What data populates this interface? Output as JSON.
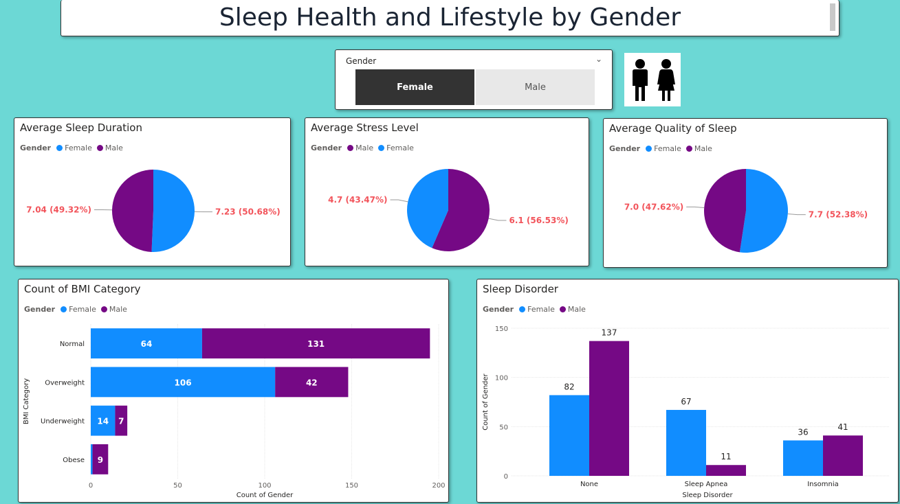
{
  "title": "Sleep Health and Lifestyle by Gender",
  "colors": {
    "female": "#118dff",
    "male": "#750985",
    "label": "#f2545b"
  },
  "slicer": {
    "header": "Gender",
    "options": [
      "Female",
      "Male"
    ],
    "selected": "Female"
  },
  "icon": "man-woman-icon",
  "legend_title": "Gender",
  "chart_data": [
    {
      "type": "pie",
      "title": "Average Sleep Duration",
      "legend": [
        "Female",
        "Male"
      ],
      "slices": [
        {
          "name": "Female",
          "value": 7.23,
          "label": "7.23 (50.68%)"
        },
        {
          "name": "Male",
          "value": 7.04,
          "label": "7.04 (49.32%)"
        }
      ]
    },
    {
      "type": "pie",
      "title": "Average Stress Level",
      "legend": [
        "Male",
        "Female"
      ],
      "slices": [
        {
          "name": "Male",
          "value": 6.1,
          "label": "6.1 (56.53%)"
        },
        {
          "name": "Female",
          "value": 4.7,
          "label": "4.7 (43.47%)"
        }
      ]
    },
    {
      "type": "pie",
      "title": "Average Quality of Sleep",
      "legend": [
        "Female",
        "Male"
      ],
      "slices": [
        {
          "name": "Female",
          "value": 7.7,
          "label": "7.7 (52.38%)"
        },
        {
          "name": "Male",
          "value": 7.0,
          "label": "7.0 (47.62%)"
        }
      ]
    },
    {
      "type": "bar",
      "orientation": "horizontal",
      "stacked": true,
      "title": "Count of BMI Category",
      "legend": [
        "Female",
        "Male"
      ],
      "categories": [
        "Normal",
        "Overweight",
        "Underweight",
        "Obese"
      ],
      "series": [
        {
          "name": "Female",
          "values": [
            64,
            106,
            14,
            1
          ]
        },
        {
          "name": "Male",
          "values": [
            131,
            42,
            7,
            9
          ]
        }
      ],
      "data_labels": {
        "Female": [
          "64",
          "106",
          "14",
          ""
        ],
        "Male": [
          "131",
          "42",
          "7",
          "9"
        ]
      },
      "xlabel": "Count of Gender",
      "ylabel": "BMI Category",
      "xlim": [
        0,
        200
      ],
      "xticks": [
        "0",
        "50",
        "100",
        "150",
        "200"
      ],
      "grid": true
    },
    {
      "type": "bar",
      "orientation": "vertical",
      "stacked": false,
      "title": "Sleep Disorder",
      "legend": [
        "Female",
        "Male"
      ],
      "categories": [
        "None",
        "Sleep Apnea",
        "Insomnia"
      ],
      "series": [
        {
          "name": "Female",
          "values": [
            82,
            67,
            36
          ]
        },
        {
          "name": "Male",
          "values": [
            137,
            11,
            41
          ]
        }
      ],
      "xlabel": "Sleep Disorder",
      "ylabel": "Count of Gender",
      "ylim": [
        0,
        150
      ],
      "yticks": [
        "0",
        "50",
        "100",
        "150"
      ],
      "grid": true
    }
  ]
}
